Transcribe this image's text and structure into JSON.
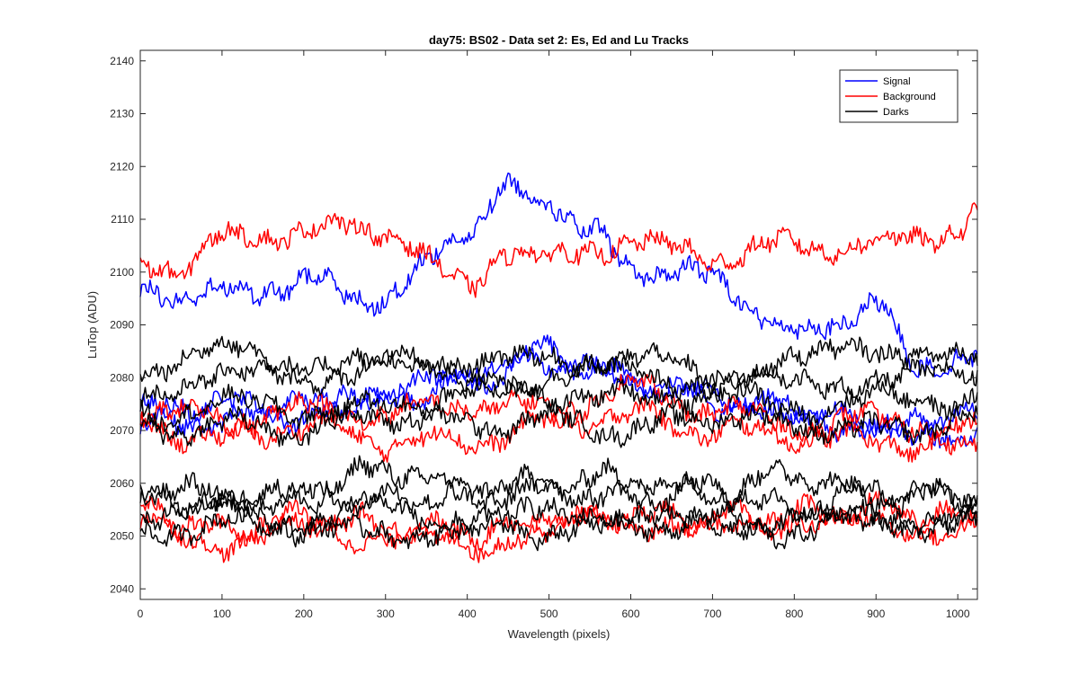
{
  "chart_data": {
    "type": "line",
    "title": "day75: BS02 - Data set 2: Es, Ed and Lu Tracks",
    "xlabel": "Wavelength (pixels)",
    "ylabel": "LuTop (ADU)",
    "xlim": [
      0,
      1024
    ],
    "ylim": [
      2038,
      2142
    ],
    "xticks": [
      "0",
      "100",
      "200",
      "300",
      "400",
      "500",
      "600",
      "700",
      "800",
      "900",
      "1000"
    ],
    "yticks": [
      "2040",
      "2050",
      "2060",
      "2070",
      "2080",
      "2090",
      "2100",
      "2110",
      "2120",
      "2130",
      "2140"
    ],
    "grid": false,
    "legend_position": "top-right",
    "colors": {
      "Signal": "#0000ff",
      "Background": "#ff0000",
      "Darks": "#000000"
    },
    "series": [
      {
        "name": "Signal",
        "x": [
          0,
          100,
          200,
          300,
          400,
          450,
          500,
          550,
          600,
          700,
          800,
          850,
          900,
          950,
          1024
        ],
        "values": [
          2096,
          2096,
          2098,
          2095,
          2108,
          2115,
          2114,
          2107,
          2101,
          2099,
          2088,
          2091,
          2093,
          2083,
          2083
        ]
      },
      {
        "name": "Signal",
        "x": [
          0,
          100,
          200,
          300,
          400,
          500,
          600,
          700,
          800,
          900,
          1024
        ],
        "values": [
          2074,
          2075,
          2075,
          2076,
          2079,
          2085,
          2080,
          2075,
          2074,
          2071,
          2069
        ]
      },
      {
        "name": "Signal",
        "x": [
          0,
          100,
          200,
          300,
          400,
          500,
          600,
          700,
          800,
          900,
          1024
        ],
        "values": [
          2071,
          2072,
          2073,
          2077,
          2081,
          2083,
          2079,
          2077,
          2073,
          2070,
          2072
        ]
      },
      {
        "name": "Background",
        "x": [
          0,
          50,
          100,
          200,
          300,
          400,
          450,
          500,
          600,
          650,
          700,
          800,
          900,
          1000,
          1024
        ],
        "values": [
          2102,
          2101,
          2106,
          2108,
          2108,
          2097,
          2105,
          2102,
          2106,
          2104,
          2103,
          2105,
          2105,
          2108,
          2112
        ]
      },
      {
        "name": "Background",
        "x": [
          0,
          100,
          200,
          300,
          400,
          500,
          600,
          700,
          800,
          900,
          1024
        ],
        "values": [
          2074,
          2072,
          2074,
          2073,
          2075,
          2074,
          2078,
          2074,
          2071,
          2072,
          2070
        ]
      },
      {
        "name": "Background",
        "x": [
          0,
          100,
          200,
          300,
          400,
          500,
          600,
          700,
          800,
          900,
          1024
        ],
        "values": [
          2071,
          2068,
          2071,
          2068,
          2068,
          2071,
          2073,
          2070,
          2069,
          2068,
          2066
        ]
      },
      {
        "name": "Background",
        "x": [
          0,
          100,
          200,
          300,
          400,
          500,
          600,
          700,
          800,
          900,
          1024
        ],
        "values": [
          2055,
          2051,
          2054,
          2052,
          2051,
          2052,
          2054,
          2053,
          2054,
          2055,
          2053
        ]
      },
      {
        "name": "Background",
        "x": [
          0,
          100,
          200,
          300,
          400,
          500,
          600,
          700,
          800,
          900,
          1024
        ],
        "values": [
          2052,
          2049,
          2051,
          2050,
          2048,
          2052,
          2053,
          2051,
          2053,
          2052,
          2051
        ]
      },
      {
        "name": "Darks",
        "x": [
          0,
          100,
          200,
          300,
          400,
          500,
          600,
          700,
          800,
          900,
          1024
        ],
        "values": [
          2082,
          2085,
          2083,
          2082,
          2083,
          2083,
          2084,
          2080,
          2083,
          2086,
          2083
        ]
      },
      {
        "name": "Darks",
        "x": [
          0,
          100,
          200,
          300,
          400,
          500,
          600,
          700,
          800,
          900,
          1024
        ],
        "values": [
          2078,
          2080,
          2080,
          2083,
          2080,
          2079,
          2082,
          2078,
          2080,
          2079,
          2081
        ]
      },
      {
        "name": "Darks",
        "x": [
          0,
          100,
          200,
          300,
          400,
          500,
          600,
          700,
          800,
          900,
          1024
        ],
        "values": [
          2073,
          2075,
          2074,
          2074,
          2078,
          2077,
          2076,
          2077,
          2074,
          2076,
          2076
        ]
      },
      {
        "name": "Darks",
        "x": [
          0,
          100,
          200,
          300,
          400,
          500,
          600,
          700,
          800,
          900,
          1024
        ],
        "values": [
          2070,
          2071,
          2070,
          2073,
          2071,
          2072,
          2070,
          2073,
          2071,
          2070,
          2072
        ]
      },
      {
        "name": "Darks",
        "x": [
          0,
          100,
          200,
          300,
          400,
          500,
          600,
          700,
          800,
          900,
          1024
        ],
        "values": [
          2059,
          2058,
          2057,
          2063,
          2058,
          2060,
          2061,
          2058,
          2062,
          2057,
          2058
        ]
      },
      {
        "name": "Darks",
        "x": [
          0,
          100,
          200,
          300,
          400,
          500,
          600,
          700,
          800,
          900,
          1024
        ],
        "values": [
          2057,
          2056,
          2058,
          2057,
          2058,
          2059,
          2057,
          2059,
          2055,
          2059,
          2057
        ]
      },
      {
        "name": "Darks",
        "x": [
          0,
          100,
          200,
          300,
          400,
          500,
          600,
          700,
          800,
          900,
          1024
        ],
        "values": [
          2054,
          2055,
          2053,
          2055,
          2052,
          2054,
          2054,
          2051,
          2054,
          2052,
          2053
        ]
      },
      {
        "name": "Darks",
        "x": [
          0,
          100,
          200,
          300,
          400,
          500,
          600,
          700,
          800,
          900,
          1024
        ],
        "values": [
          2051,
          2052,
          2052,
          2050,
          2052,
          2051,
          2052,
          2053,
          2051,
          2054,
          2052
        ]
      }
    ]
  }
}
